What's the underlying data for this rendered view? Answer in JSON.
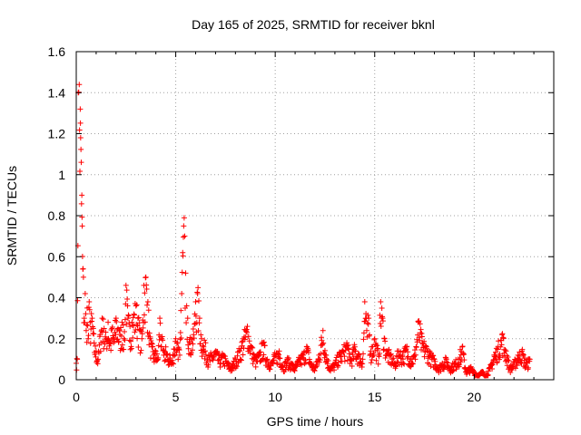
{
  "chart_data": {
    "type": "scatter",
    "title": "Day 165 of 2025, SRMTID for receiver bknl",
    "xlabel": "GPS time / hours",
    "ylabel": "SRMTID / TECUs",
    "xlim": [
      0,
      24
    ],
    "ylim": [
      0,
      1.6
    ],
    "xticks": [
      0,
      5,
      10,
      15,
      20
    ],
    "xtick_labels": [
      "0",
      "5",
      "10",
      "15",
      "20"
    ],
    "yticks": [
      0,
      0.2,
      0.4,
      0.6,
      0.8,
      1,
      1.2,
      1.4,
      1.6
    ],
    "ytick_labels": [
      "0",
      "0.2",
      "0.4",
      "0.6",
      "0.8",
      "1",
      "1.2",
      "1.4",
      "1.6"
    ],
    "grid": true,
    "marker": "+",
    "color": "#ff0000",
    "series": [
      {
        "name": "bknl",
        "x": [
          0.0,
          0.05,
          0.1,
          0.15,
          0.2,
          0.22,
          0.25,
          0.28,
          0.3,
          0.33,
          0.36,
          0.4,
          0.45,
          0.5,
          0.55,
          0.6,
          0.65,
          0.7,
          0.8,
          0.9,
          1.0,
          1.1,
          1.2,
          1.3,
          1.4,
          1.5,
          1.6,
          1.7,
          1.8,
          1.9,
          2.0,
          2.1,
          2.2,
          2.3,
          2.4,
          2.5,
          2.6,
          2.7,
          2.8,
          2.9,
          3.0,
          3.1,
          3.2,
          3.3,
          3.4,
          3.5,
          3.6,
          3.7,
          3.8,
          3.9,
          4.0,
          4.1,
          4.2,
          4.3,
          4.4,
          4.5,
          4.6,
          4.7,
          4.8,
          4.9,
          5.0,
          5.1,
          5.2,
          5.3,
          5.35,
          5.4,
          5.45,
          5.5,
          5.55,
          5.6,
          5.7,
          5.8,
          5.9,
          6.0,
          6.1,
          6.2,
          6.3,
          6.4,
          6.5,
          6.6,
          6.8,
          7.0,
          7.2,
          7.4,
          7.6,
          7.8,
          8.0,
          8.2,
          8.4,
          8.6,
          8.8,
          9.0,
          9.2,
          9.4,
          9.6,
          9.8,
          10.0,
          10.2,
          10.4,
          10.6,
          10.8,
          11.0,
          11.2,
          11.4,
          11.6,
          11.8,
          12.0,
          12.2,
          12.4,
          12.6,
          12.8,
          13.0,
          13.2,
          13.4,
          13.6,
          13.8,
          14.0,
          14.2,
          14.4,
          14.5,
          14.6,
          14.7,
          14.8,
          15.0,
          15.2,
          15.3,
          15.4,
          15.5,
          15.6,
          15.8,
          16.0,
          16.2,
          16.4,
          16.6,
          16.8,
          17.0,
          17.2,
          17.4,
          17.6,
          17.8,
          18.0,
          18.2,
          18.4,
          18.6,
          18.8,
          19.0,
          19.2,
          19.4,
          19.6,
          19.8,
          20.0,
          20.2,
          20.4,
          20.6,
          20.8,
          21.0,
          21.2,
          21.4,
          21.6,
          21.8,
          22.0,
          22.2,
          22.4,
          22.6,
          22.8
        ],
        "y": [
          0.08,
          0.1,
          1.4,
          1.44,
          1.32,
          1.18,
          1.06,
          0.9,
          0.75,
          0.54,
          0.5,
          0.3,
          0.42,
          0.24,
          0.35,
          0.2,
          0.38,
          0.28,
          0.3,
          0.18,
          0.14,
          0.1,
          0.22,
          0.3,
          0.25,
          0.2,
          0.28,
          0.18,
          0.25,
          0.2,
          0.3,
          0.25,
          0.22,
          0.28,
          0.2,
          0.46,
          0.3,
          0.26,
          0.28,
          0.32,
          0.36,
          0.3,
          0.24,
          0.2,
          0.46,
          0.5,
          0.38,
          0.2,
          0.16,
          0.12,
          0.14,
          0.1,
          0.3,
          0.2,
          0.12,
          0.16,
          0.1,
          0.12,
          0.08,
          0.15,
          0.2,
          0.18,
          0.12,
          0.42,
          0.62,
          0.75,
          0.7,
          0.52,
          0.36,
          0.3,
          0.18,
          0.2,
          0.22,
          0.38,
          0.42,
          0.3,
          0.2,
          0.16,
          0.18,
          0.1,
          0.12,
          0.14,
          0.1,
          0.12,
          0.08,
          0.06,
          0.1,
          0.14,
          0.2,
          0.26,
          0.16,
          0.1,
          0.12,
          0.18,
          0.1,
          0.08,
          0.12,
          0.14,
          0.06,
          0.1,
          0.08,
          0.06,
          0.1,
          0.12,
          0.16,
          0.08,
          0.06,
          0.12,
          0.24,
          0.1,
          0.06,
          0.08,
          0.12,
          0.14,
          0.18,
          0.1,
          0.16,
          0.12,
          0.1,
          0.38,
          0.24,
          0.3,
          0.14,
          0.2,
          0.12,
          0.38,
          0.3,
          0.2,
          0.14,
          0.12,
          0.08,
          0.14,
          0.12,
          0.16,
          0.1,
          0.12,
          0.28,
          0.18,
          0.16,
          0.12,
          0.1,
          0.06,
          0.08,
          0.1,
          0.06,
          0.08,
          0.1,
          0.16,
          0.04,
          0.06,
          0.04,
          0.02,
          0.04,
          0.02,
          0.06,
          0.12,
          0.16,
          0.22,
          0.14,
          0.06,
          0.08,
          0.12,
          0.14,
          0.08,
          0.1
        ]
      }
    ]
  }
}
